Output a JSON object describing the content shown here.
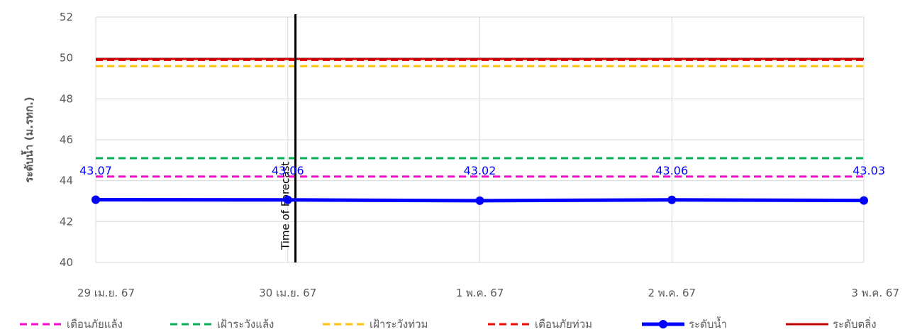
{
  "chart_data": {
    "type": "line",
    "title": "",
    "xlabel": "",
    "ylabel": "ระดับน้ำ (ม.รทก.)",
    "ylim": [
      40,
      52
    ],
    "yticks": [
      40,
      42,
      44,
      46,
      48,
      50,
      52
    ],
    "categories": [
      "29 เม.ย. 67",
      "30 เม.ย. 67",
      "1 พ.ค. 67",
      "2 พ.ค. 67",
      "3 พ.ค. 67"
    ],
    "grid": true,
    "legend_position": "bottom",
    "thresholds": [
      {
        "name": "เตือนภัยแล้ง",
        "value": 44.2,
        "color": "#ff00cc",
        "style": "dashed"
      },
      {
        "name": "เฝ้าระวังแล้ง",
        "value": 45.1,
        "color": "#00b050",
        "style": "dashed"
      },
      {
        "name": "เฝ้าระวังท่วม",
        "value": 49.6,
        "color": "#ffc000",
        "style": "dashed"
      },
      {
        "name": "เตือนภัยท่วม",
        "value": 49.9,
        "color": "#ff0000",
        "style": "dashed"
      },
      {
        "name": "ระดับตลิ่ง",
        "value": 49.95,
        "color": "#c00000",
        "style": "solid"
      }
    ],
    "series": [
      {
        "name": "ระดับน้ำ",
        "values": [
          43.07,
          43.06,
          43.02,
          43.06,
          43.03
        ],
        "color": "#0000ff",
        "labels": [
          "43.07",
          "43.06",
          "43.02",
          "43.06",
          "43.03"
        ]
      }
    ],
    "legend_order": [
      "เตือนภัยแล้ง",
      "เฝ้าระวังแล้ง",
      "เฝ้าระวังท่วม",
      "เตือนภัยท่วม",
      "ระดับน้ำ",
      "ระดับตลิ่ง"
    ],
    "annotations": [
      {
        "text": "Time of Forecast",
        "x_category_index": 1.04
      }
    ]
  }
}
